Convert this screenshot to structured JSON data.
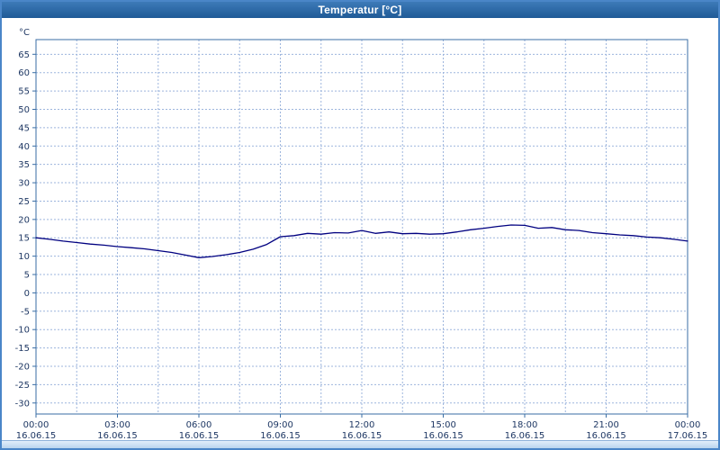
{
  "window": {
    "title": "Temperatur [°C]"
  },
  "chart_data": {
    "type": "line",
    "title": "Temperatur [°C]",
    "unit_label": "°C",
    "xlabel": "",
    "ylabel": "°C",
    "ylim": [
      -33,
      69
    ],
    "y_ticks": [
      65,
      60,
      55,
      50,
      45,
      40,
      35,
      30,
      25,
      20,
      15,
      10,
      5,
      0,
      -5,
      -10,
      -15,
      -20,
      -25,
      -30
    ],
    "x_range_hours": [
      0,
      24
    ],
    "x_ticks": [
      {
        "time": "00:00",
        "date": "16.06.15"
      },
      {
        "time": "03:00",
        "date": "16.06.15"
      },
      {
        "time": "06:00",
        "date": "16.06.15"
      },
      {
        "time": "09:00",
        "date": "16.06.15"
      },
      {
        "time": "12:00",
        "date": "16.06.15"
      },
      {
        "time": "15:00",
        "date": "16.06.15"
      },
      {
        "time": "18:00",
        "date": "16.06.15"
      },
      {
        "time": "21:00",
        "date": "16.06.15"
      },
      {
        "time": "00:00",
        "date": "17.06.15"
      }
    ],
    "grid": {
      "horizontal_step_deg": 5,
      "vertical_step_hours": 1.5,
      "style": "dashed",
      "visible": true
    },
    "legend": {
      "visible": false
    },
    "colors": {
      "line": "#000080",
      "grid": "#9db5dd",
      "plot_border": "#3a6ea5",
      "tick_text": "#1f3864",
      "titlebar": "#2e6ca8"
    },
    "series": [
      {
        "name": "Temperatur",
        "x_hours": [
          0,
          0.5,
          1,
          1.5,
          2,
          2.5,
          3,
          3.5,
          4,
          4.5,
          5,
          5.5,
          6,
          6.5,
          7,
          7.5,
          8,
          8.5,
          9,
          9.5,
          10,
          10.5,
          11,
          11.5,
          12,
          12.5,
          13,
          13.5,
          14,
          14.5,
          15,
          15.5,
          16,
          16.5,
          17,
          17.5,
          18,
          18.5,
          19,
          19.5,
          20,
          20.5,
          21,
          21.5,
          22,
          22.5,
          23,
          23.5,
          24
        ],
        "values": [
          15.0,
          14.6,
          14.1,
          13.7,
          13.3,
          13.0,
          12.6,
          12.3,
          12.0,
          11.5,
          11.0,
          10.3,
          9.6,
          9.9,
          10.4,
          11.0,
          11.9,
          13.2,
          15.3,
          15.6,
          16.2,
          16.0,
          16.4,
          16.3,
          17.0,
          16.2,
          16.6,
          16.1,
          16.2,
          16.0,
          16.1,
          16.6,
          17.2,
          17.6,
          18.1,
          18.5,
          18.4,
          17.6,
          17.8,
          17.2,
          17.0,
          16.4,
          16.1,
          15.8,
          15.6,
          15.2,
          15.0,
          14.6,
          14.1
        ]
      }
    ]
  }
}
